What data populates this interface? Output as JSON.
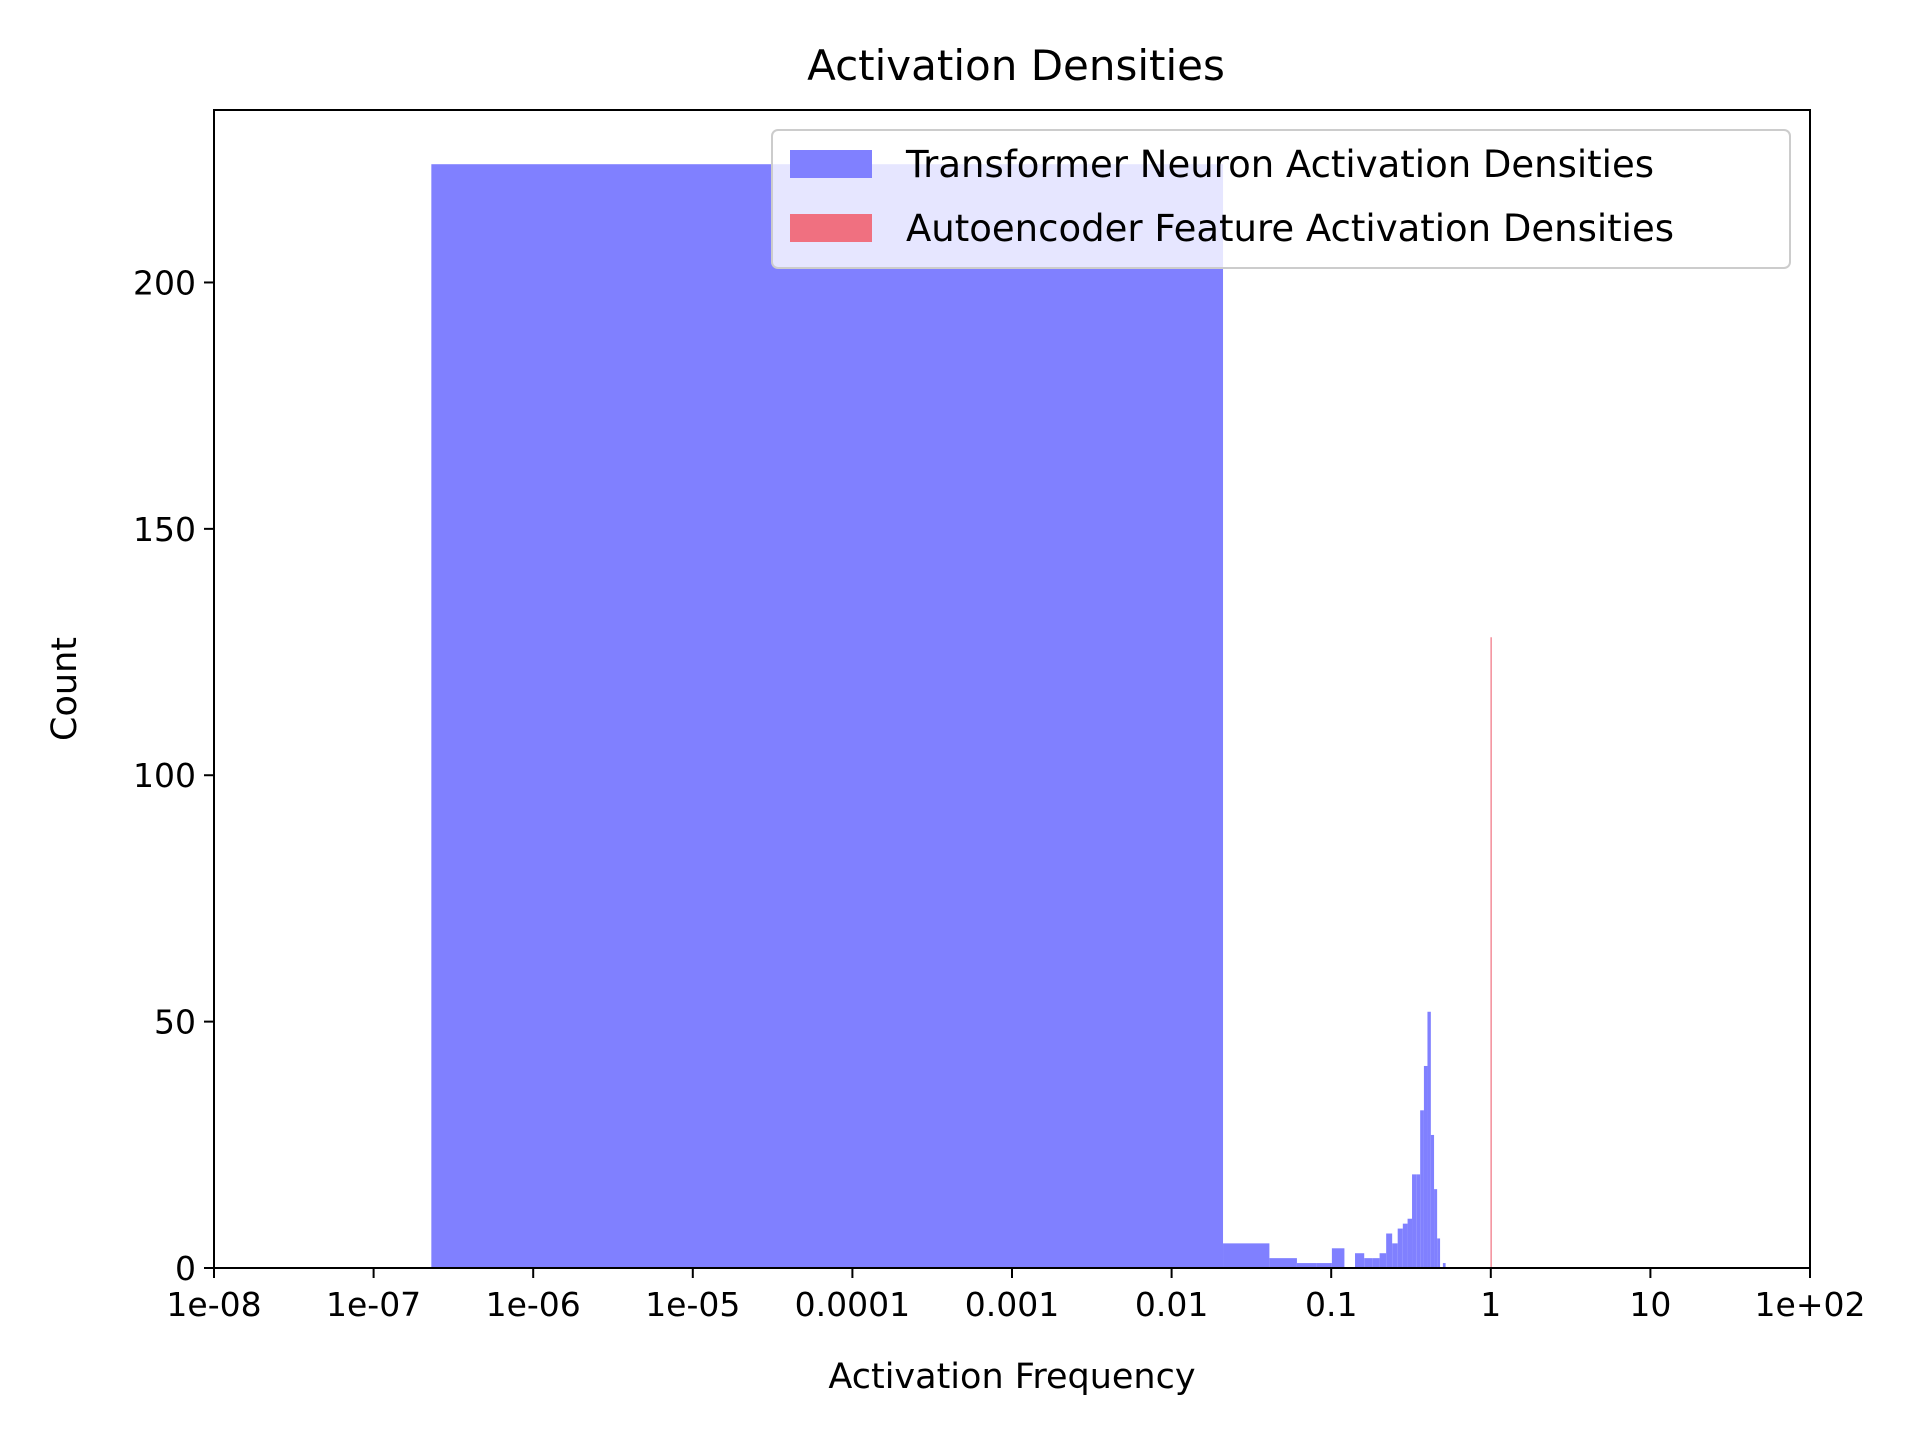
{
  "chart_data": {
    "type": "bar",
    "title": "Activation Densities",
    "xlabel": "Activation Frequency",
    "ylabel": "Count",
    "xscale": "log",
    "xlim": [
      1e-08,
      100
    ],
    "ylim": [
      0,
      235
    ],
    "x_ticks": [
      {
        "value": 1e-08,
        "label": "1e-08"
      },
      {
        "value": 1e-07,
        "label": "1e-07"
      },
      {
        "value": 1e-06,
        "label": "1e-06"
      },
      {
        "value": 1e-05,
        "label": "1e-05"
      },
      {
        "value": 0.0001,
        "label": "0.0001"
      },
      {
        "value": 0.001,
        "label": "0.001"
      },
      {
        "value": 0.01,
        "label": "0.01"
      },
      {
        "value": 0.1,
        "label": "0.1"
      },
      {
        "value": 1,
        "label": "1"
      },
      {
        "value": 10,
        "label": "10"
      },
      {
        "value": 100,
        "label": "1e+02"
      }
    ],
    "y_ticks": [
      0,
      50,
      100,
      150,
      200
    ],
    "grid": false,
    "legend_position": "top-right",
    "series": [
      {
        "name": "Transformer Neuron Activation Densities",
        "color": "#8080ff",
        "bins": [
          {
            "x0": 2.3e-07,
            "x1": 0.021,
            "count": 224
          },
          {
            "x0": 0.021,
            "x1": 0.041,
            "count": 5
          },
          {
            "x0": 0.041,
            "x1": 0.061,
            "count": 2
          },
          {
            "x0": 0.061,
            "x1": 0.081,
            "count": 1
          },
          {
            "x0": 0.081,
            "x1": 0.101,
            "count": 1
          },
          {
            "x0": 0.101,
            "x1": 0.121,
            "count": 4
          },
          {
            "x0": 0.121,
            "x1": 0.141,
            "count": 0
          },
          {
            "x0": 0.141,
            "x1": 0.161,
            "count": 3
          },
          {
            "x0": 0.161,
            "x1": 0.181,
            "count": 2
          },
          {
            "x0": 0.181,
            "x1": 0.201,
            "count": 2
          },
          {
            "x0": 0.201,
            "x1": 0.221,
            "count": 3
          },
          {
            "x0": 0.221,
            "x1": 0.241,
            "count": 7
          },
          {
            "x0": 0.241,
            "x1": 0.261,
            "count": 5
          },
          {
            "x0": 0.261,
            "x1": 0.281,
            "count": 8
          },
          {
            "x0": 0.281,
            "x1": 0.301,
            "count": 9
          },
          {
            "x0": 0.301,
            "x1": 0.321,
            "count": 10
          },
          {
            "x0": 0.321,
            "x1": 0.341,
            "count": 19
          },
          {
            "x0": 0.341,
            "x1": 0.361,
            "count": 19
          },
          {
            "x0": 0.361,
            "x1": 0.381,
            "count": 32
          },
          {
            "x0": 0.381,
            "x1": 0.401,
            "count": 41
          },
          {
            "x0": 0.401,
            "x1": 0.421,
            "count": 52
          },
          {
            "x0": 0.421,
            "x1": 0.441,
            "count": 27
          },
          {
            "x0": 0.441,
            "x1": 0.461,
            "count": 16
          },
          {
            "x0": 0.461,
            "x1": 0.481,
            "count": 6
          },
          {
            "x0": 0.481,
            "x1": 0.501,
            "count": 0
          },
          {
            "x0": 0.501,
            "x1": 0.521,
            "count": 1
          }
        ]
      },
      {
        "name": "Autoencoder Feature Activation Densities",
        "color": "#f07080",
        "bins": [
          {
            "x0": 0.996,
            "x1": 1.0,
            "count": 128
          }
        ]
      }
    ]
  }
}
